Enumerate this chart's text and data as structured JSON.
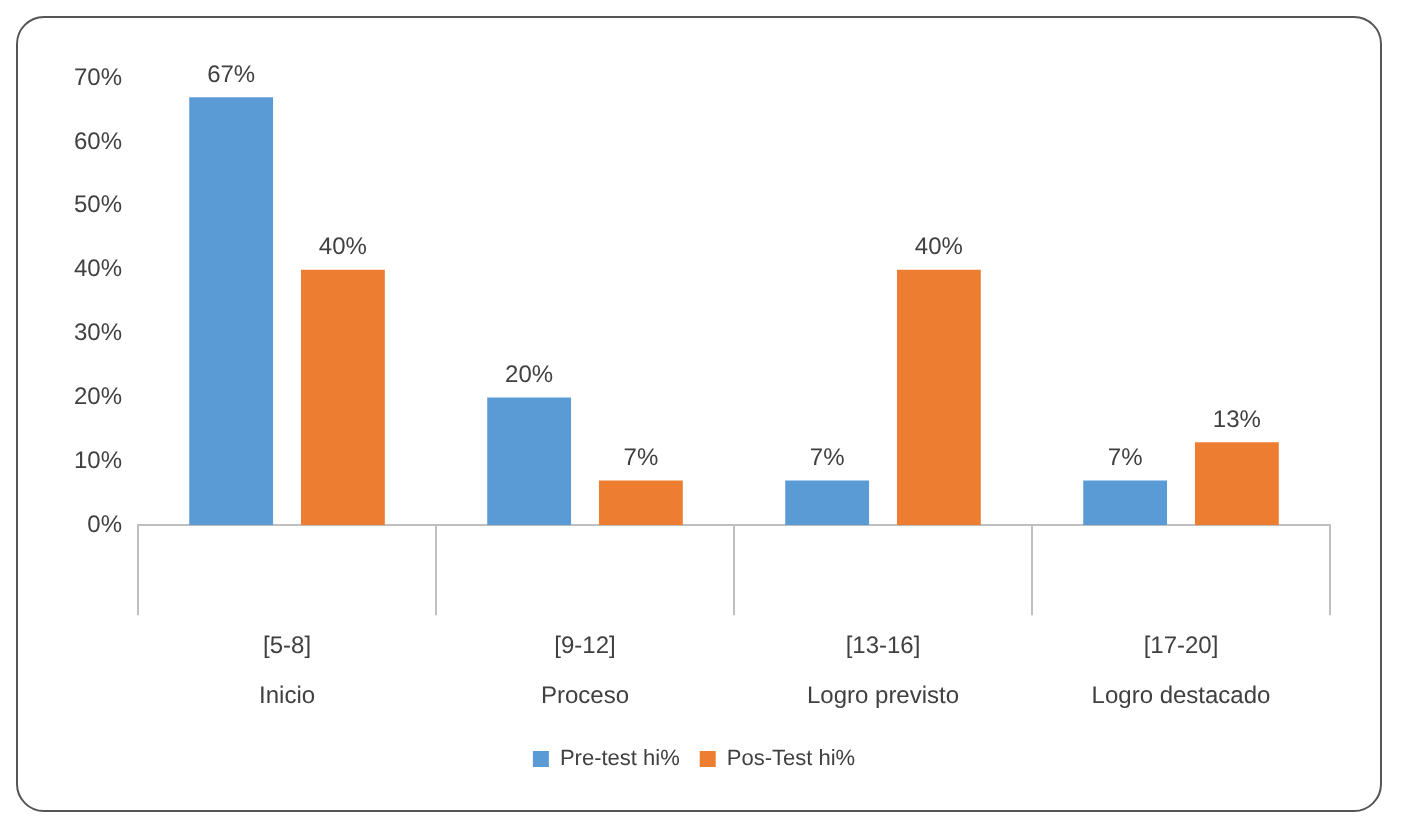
{
  "chart_data": {
    "type": "bar",
    "categories": [
      "[5-8]\nInicio",
      "[9-12]\nProceso",
      "[13-16]\nLogro previsto",
      "[17-20]\nLogro destacado"
    ],
    "series": [
      {
        "name": "Pre-test hi%",
        "color": "#5b9bd5",
        "values": [
          67,
          20,
          7,
          7
        ],
        "value_labels": [
          "67%",
          "20%",
          "7%",
          "7%"
        ]
      },
      {
        "name": "Pos-Test hi%",
        "color": "#ed7d31",
        "values": [
          40,
          7,
          40,
          13
        ],
        "value_labels": [
          "40%",
          "7%",
          "40%",
          "13%"
        ]
      }
    ],
    "ylim": [
      0,
      70
    ],
    "yticks": [
      {
        "value": 0,
        "label": "0%"
      },
      {
        "value": 10,
        "label": "10%"
      },
      {
        "value": 20,
        "label": "20%"
      },
      {
        "value": 30,
        "label": "30%"
      },
      {
        "value": 40,
        "label": "40%"
      },
      {
        "value": 50,
        "label": "50%"
      },
      {
        "value": 60,
        "label": "60%"
      },
      {
        "value": 70,
        "label": "70%"
      }
    ],
    "grid": false,
    "legend": "bottom"
  }
}
